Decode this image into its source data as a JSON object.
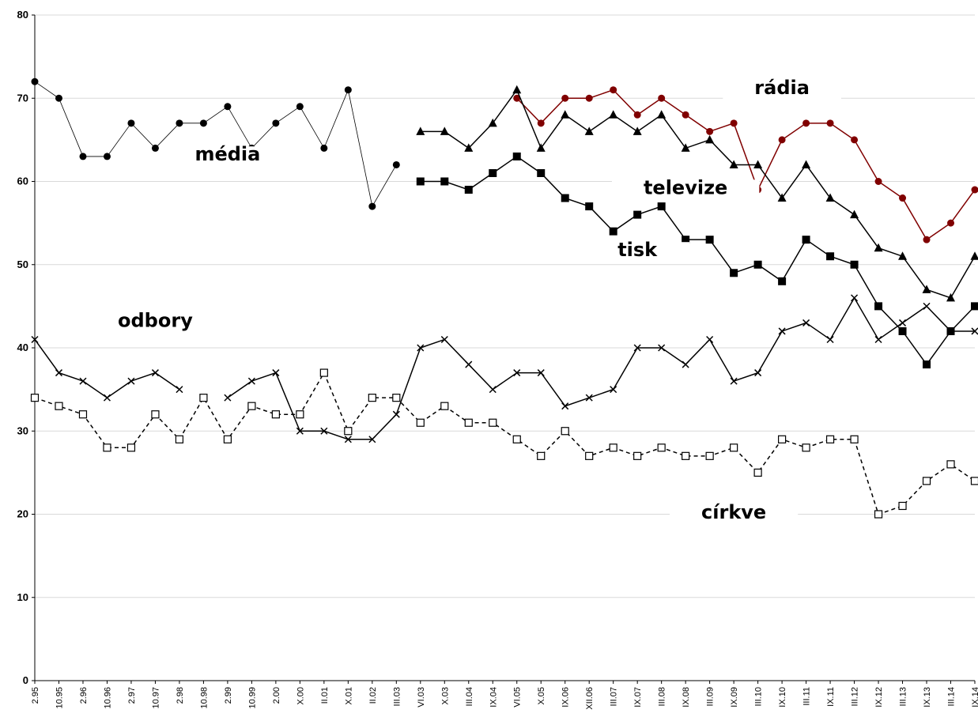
{
  "chart_data": {
    "type": "line",
    "ylim": [
      0,
      80
    ],
    "yticks": [
      0,
      10,
      20,
      30,
      40,
      50,
      60,
      70,
      80
    ],
    "grid": true,
    "x": [
      "2.95",
      "10.95",
      "2.96",
      "10.96",
      "2.97",
      "10.97",
      "2.98",
      "10.98",
      "2.99",
      "10.99",
      "2.00",
      "X.00",
      "II.01",
      "X.01",
      "II.02",
      "III.03",
      "VI.03",
      "X.03",
      "III.04",
      "IX.04",
      "VI.05",
      "X.05",
      "IX.06",
      "XII.06",
      "III.07",
      "IX.07",
      "III.08",
      "IX.08",
      "III.09",
      "IX.09",
      "III.10",
      "IX.10",
      "III.11",
      "IX.11",
      "III.12",
      "IX.12",
      "III.13",
      "IX.13",
      "III.14",
      "IX.14"
    ],
    "series": [
      {
        "name": "média",
        "color": "#000000",
        "marker": "circle",
        "dash": "solid",
        "thin": true,
        "values": [
          72,
          70,
          63,
          63,
          67,
          64,
          67,
          67,
          69,
          64,
          67,
          69,
          64,
          71,
          57,
          62,
          null,
          null,
          null,
          null,
          null,
          null,
          null,
          null,
          null,
          null,
          null,
          null,
          null,
          null,
          null,
          null,
          null,
          null,
          null,
          null,
          null,
          null,
          null,
          null
        ]
      },
      {
        "name": "rádia",
        "color": "#800000",
        "marker": "circle",
        "dash": "solid",
        "values": [
          null,
          null,
          null,
          null,
          null,
          null,
          null,
          null,
          null,
          null,
          null,
          null,
          null,
          null,
          null,
          null,
          null,
          null,
          null,
          null,
          70,
          67,
          70,
          70,
          71,
          68,
          70,
          68,
          66,
          67,
          59,
          65,
          67,
          67,
          65,
          60,
          58,
          53,
          55,
          59
        ]
      },
      {
        "name": "televize",
        "color": "#000000",
        "marker": "triangle",
        "dash": "solid",
        "values": [
          null,
          null,
          null,
          null,
          null,
          null,
          null,
          null,
          null,
          null,
          null,
          null,
          null,
          null,
          null,
          null,
          66,
          66,
          64,
          67,
          71,
          64,
          68,
          66,
          68,
          66,
          68,
          64,
          65,
          62,
          62,
          58,
          62,
          58,
          56,
          52,
          51,
          47,
          46,
          51
        ]
      },
      {
        "name": "tisk",
        "color": "#000000",
        "marker": "square",
        "dash": "solid",
        "values": [
          null,
          null,
          null,
          null,
          null,
          null,
          null,
          null,
          null,
          null,
          null,
          null,
          null,
          null,
          null,
          null,
          60,
          60,
          59,
          61,
          63,
          61,
          58,
          57,
          54,
          56,
          57,
          53,
          53,
          49,
          50,
          48,
          53,
          51,
          50,
          45,
          42,
          38,
          42,
          45
        ]
      },
      {
        "name": "odbory",
        "color": "#000000",
        "marker": "x",
        "dash": "solid",
        "values": [
          41,
          37,
          36,
          34,
          36,
          37,
          35,
          null,
          34,
          36,
          37,
          30,
          30,
          29,
          29,
          32,
          40,
          41,
          38,
          35,
          37,
          37,
          33,
          34,
          35,
          40,
          40,
          38,
          41,
          36,
          37,
          42,
          43,
          41,
          46,
          41,
          43,
          45,
          42,
          42
        ]
      },
      {
        "name": "církve",
        "color": "#000000",
        "marker": "open-square",
        "dash": "dashed",
        "values": [
          34,
          33,
          32,
          28,
          28,
          32,
          29,
          34,
          29,
          33,
          32,
          32,
          37,
          30,
          34,
          34,
          31,
          33,
          31,
          31,
          29,
          27,
          30,
          27,
          28,
          27,
          28,
          27,
          27,
          28,
          25,
          29,
          28,
          29,
          29,
          20,
          21,
          24,
          26,
          24
        ]
      }
    ],
    "labels": [
      {
        "text": "média",
        "x": "2.99",
        "y": 62.5
      },
      {
        "text": "rádia",
        "x": "IX.10",
        "y": 70.5
      },
      {
        "text": "televize",
        "x": "IX.08",
        "y": 58.5
      },
      {
        "text": "tisk",
        "x": "IX.07",
        "y": 51.0
      },
      {
        "text": "odbory",
        "x": "10.97",
        "y": 42.5
      },
      {
        "text": "církve",
        "x": "IX.09",
        "y": 19.5
      }
    ]
  }
}
